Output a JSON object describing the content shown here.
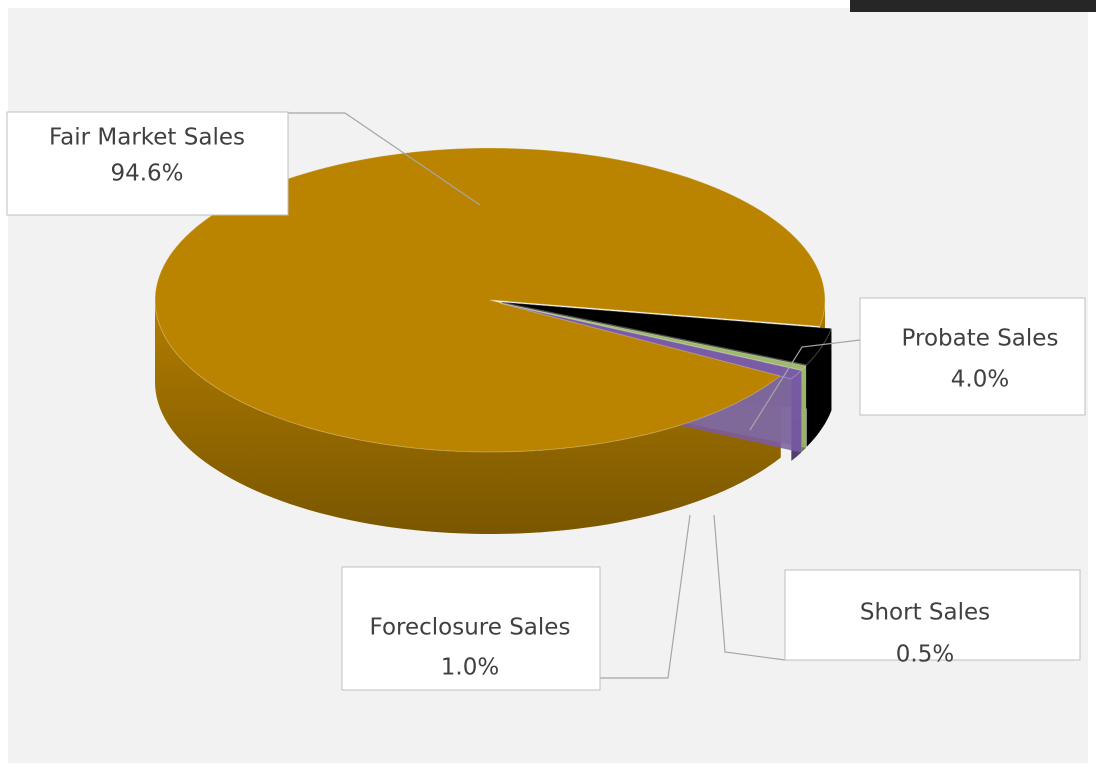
{
  "chart_data": {
    "type": "pie",
    "categories": [
      "Fair Market Sales",
      "Probate Sales",
      "Short Sales",
      "Foreclosure Sales"
    ],
    "values": [
      94.6,
      4.0,
      0.5,
      1.0
    ],
    "value_labels": [
      "94.6%",
      "4.0%",
      "0.5%",
      "1.0%"
    ],
    "colors": [
      "#bb8400",
      "#000000",
      "#9fba6a",
      "#7a5ca6"
    ]
  }
}
